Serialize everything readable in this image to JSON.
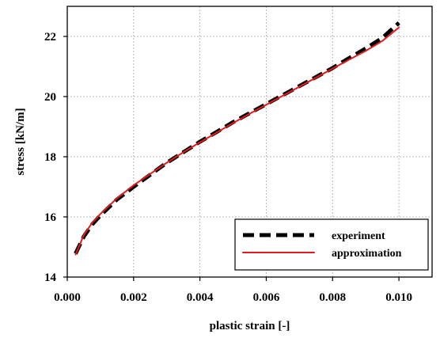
{
  "chart_data": {
    "type": "line",
    "title": "",
    "xlabel": "plastic strain [-]",
    "ylabel": "stress [kN/m]",
    "xlim": [
      0.0,
      0.011
    ],
    "ylim": [
      14,
      23
    ],
    "grid": true,
    "legend_position": "bottom-right",
    "xticks": [
      0.0,
      0.002,
      0.004,
      0.006,
      0.008,
      0.01
    ],
    "xtick_labels": [
      "0.000",
      "0.002",
      "0.004",
      "0.006",
      "0.008",
      "0.010"
    ],
    "yticks": [
      14,
      16,
      18,
      20,
      22
    ],
    "ytick_labels": [
      "14",
      "16",
      "18",
      "20",
      "22"
    ],
    "series": [
      {
        "name": "experiment",
        "color": "#000000",
        "style": "dashed",
        "x": [
          0.00025,
          0.0005,
          0.00075,
          0.001,
          0.0015,
          0.002,
          0.0025,
          0.003,
          0.0035,
          0.004,
          0.0045,
          0.005,
          0.0055,
          0.006,
          0.0065,
          0.007,
          0.0075,
          0.008,
          0.0085,
          0.009,
          0.0095,
          0.01
        ],
        "y": [
          14.78,
          15.35,
          15.75,
          16.05,
          16.58,
          17.0,
          17.4,
          17.8,
          18.15,
          18.5,
          18.82,
          19.15,
          19.45,
          19.75,
          20.05,
          20.35,
          20.65,
          20.95,
          21.28,
          21.6,
          21.95,
          22.45
        ]
      },
      {
        "name": "approximation",
        "color": "#e41a1c",
        "style": "solid",
        "x": [
          0.00025,
          0.0005,
          0.00075,
          0.001,
          0.0015,
          0.002,
          0.0025,
          0.003,
          0.0035,
          0.004,
          0.0045,
          0.005,
          0.0055,
          0.006,
          0.0065,
          0.007,
          0.0075,
          0.008,
          0.0085,
          0.009,
          0.0095,
          0.01
        ],
        "y": [
          14.75,
          15.4,
          15.8,
          16.1,
          16.62,
          17.05,
          17.43,
          17.8,
          18.15,
          18.48,
          18.8,
          19.12,
          19.43,
          19.73,
          20.03,
          20.33,
          20.63,
          20.93,
          21.23,
          21.52,
          21.85,
          22.3
        ]
      }
    ]
  }
}
